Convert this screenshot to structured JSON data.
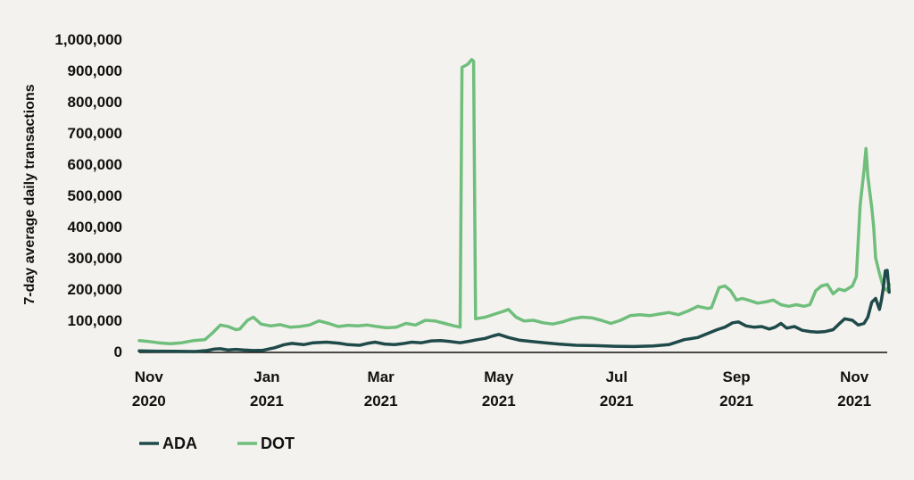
{
  "chart_data": {
    "type": "line",
    "xlabel": "",
    "ylabel": "7-day average daily transactions",
    "ylim": [
      0,
      1000000
    ],
    "xlim": [
      "2020-10-27",
      "2021-11-18"
    ],
    "grid": false,
    "legend_position": "bottom-left",
    "y_ticks": [
      "0",
      "100,000",
      "200,000",
      "300,000",
      "400,000",
      "500,000",
      "600,000",
      "700,000",
      "800,000",
      "900,000",
      "1,000,000"
    ],
    "y_tick_values": [
      0,
      100000,
      200000,
      300000,
      400000,
      500000,
      600000,
      700000,
      800000,
      900000,
      1000000
    ],
    "x_ticks": [
      {
        "date": "2020-11-01",
        "month": "Nov",
        "year": "2020"
      },
      {
        "date": "2021-01-01",
        "month": "Jan",
        "year": "2021"
      },
      {
        "date": "2021-03-01",
        "month": "Mar",
        "year": "2021"
      },
      {
        "date": "2021-05-01",
        "month": "May",
        "year": "2021"
      },
      {
        "date": "2021-07-01",
        "month": "Jul",
        "year": "2021"
      },
      {
        "date": "2021-09-01",
        "month": "Sep",
        "year": "2021"
      },
      {
        "date": "2021-11-01",
        "month": "Nov",
        "year": "2021"
      }
    ],
    "series": [
      {
        "name": "ADA",
        "color": "#1f4a4a",
        "points": [
          [
            "2020-10-27",
            2000
          ],
          [
            "2020-11-05",
            1000
          ],
          [
            "2020-11-15",
            500
          ],
          [
            "2020-11-25",
            0
          ],
          [
            "2020-12-01",
            3000
          ],
          [
            "2020-12-05",
            8000
          ],
          [
            "2020-12-08",
            9000
          ],
          [
            "2020-12-12",
            5000
          ],
          [
            "2020-12-16",
            7000
          ],
          [
            "2020-12-20",
            5000
          ],
          [
            "2020-12-25",
            3000
          ],
          [
            "2020-12-30",
            4000
          ],
          [
            "2021-01-05",
            12000
          ],
          [
            "2021-01-10",
            22000
          ],
          [
            "2021-01-14",
            26000
          ],
          [
            "2021-01-20",
            22000
          ],
          [
            "2021-01-25",
            28000
          ],
          [
            "2021-02-01",
            30000
          ],
          [
            "2021-02-07",
            27000
          ],
          [
            "2021-02-12",
            22000
          ],
          [
            "2021-02-18",
            20000
          ],
          [
            "2021-02-22",
            26000
          ],
          [
            "2021-02-26",
            30000
          ],
          [
            "2021-03-03",
            24000
          ],
          [
            "2021-03-08",
            22000
          ],
          [
            "2021-03-12",
            25000
          ],
          [
            "2021-03-17",
            30000
          ],
          [
            "2021-03-22",
            28000
          ],
          [
            "2021-03-27",
            34000
          ],
          [
            "2021-04-01",
            35000
          ],
          [
            "2021-04-06",
            32000
          ],
          [
            "2021-04-11",
            28000
          ],
          [
            "2021-04-16",
            33000
          ],
          [
            "2021-04-20",
            38000
          ],
          [
            "2021-04-24",
            42000
          ],
          [
            "2021-04-28",
            50000
          ],
          [
            "2021-05-01",
            55000
          ],
          [
            "2021-05-06",
            45000
          ],
          [
            "2021-05-12",
            36000
          ],
          [
            "2021-05-18",
            32000
          ],
          [
            "2021-05-25",
            28000
          ],
          [
            "2021-06-01",
            24000
          ],
          [
            "2021-06-10",
            20000
          ],
          [
            "2021-06-20",
            19000
          ],
          [
            "2021-06-30",
            17000
          ],
          [
            "2021-07-10",
            16000
          ],
          [
            "2021-07-20",
            18000
          ],
          [
            "2021-07-28",
            22000
          ],
          [
            "2021-08-05",
            38000
          ],
          [
            "2021-08-12",
            45000
          ],
          [
            "2021-08-18",
            60000
          ],
          [
            "2021-08-22",
            70000
          ],
          [
            "2021-08-26",
            78000
          ],
          [
            "2021-08-30",
            92000
          ],
          [
            "2021-09-02",
            95000
          ],
          [
            "2021-09-06",
            82000
          ],
          [
            "2021-09-10",
            78000
          ],
          [
            "2021-09-14",
            80000
          ],
          [
            "2021-09-18",
            72000
          ],
          [
            "2021-09-21",
            78000
          ],
          [
            "2021-09-24",
            90000
          ],
          [
            "2021-09-27",
            75000
          ],
          [
            "2021-10-01",
            80000
          ],
          [
            "2021-10-05",
            68000
          ],
          [
            "2021-10-09",
            64000
          ],
          [
            "2021-10-13",
            62000
          ],
          [
            "2021-10-17",
            64000
          ],
          [
            "2021-10-21",
            70000
          ],
          [
            "2021-10-24",
            88000
          ],
          [
            "2021-10-27",
            105000
          ],
          [
            "2021-10-31",
            100000
          ],
          [
            "2021-11-03",
            85000
          ],
          [
            "2021-11-06",
            90000
          ],
          [
            "2021-11-08",
            110000
          ],
          [
            "2021-11-10",
            158000
          ],
          [
            "2021-11-12",
            170000
          ],
          [
            "2021-11-14",
            135000
          ],
          [
            "2021-11-15",
            165000
          ],
          [
            "2021-11-16",
            205000
          ],
          [
            "2021-11-17",
            258000
          ],
          [
            "2021-11-18",
            260000
          ],
          [
            "2021-11-19",
            190000
          ]
        ]
      },
      {
        "name": "DOT",
        "color": "#6fbe7c",
        "points": [
          [
            "2020-10-27",
            35000
          ],
          [
            "2020-11-01",
            32000
          ],
          [
            "2020-11-06",
            28000
          ],
          [
            "2020-11-12",
            25000
          ],
          [
            "2020-11-18",
            28000
          ],
          [
            "2020-11-24",
            35000
          ],
          [
            "2020-11-30",
            38000
          ],
          [
            "2020-12-04",
            60000
          ],
          [
            "2020-12-08",
            85000
          ],
          [
            "2020-12-12",
            80000
          ],
          [
            "2020-12-16",
            70000
          ],
          [
            "2020-12-18",
            72000
          ],
          [
            "2020-12-22",
            100000
          ],
          [
            "2020-12-25",
            110000
          ],
          [
            "2020-12-29",
            88000
          ],
          [
            "2021-01-03",
            82000
          ],
          [
            "2021-01-08",
            86000
          ],
          [
            "2021-01-13",
            78000
          ],
          [
            "2021-01-18",
            80000
          ],
          [
            "2021-01-23",
            85000
          ],
          [
            "2021-01-28",
            98000
          ],
          [
            "2021-02-02",
            90000
          ],
          [
            "2021-02-07",
            80000
          ],
          [
            "2021-02-12",
            84000
          ],
          [
            "2021-02-17",
            82000
          ],
          [
            "2021-02-22",
            85000
          ],
          [
            "2021-02-27",
            80000
          ],
          [
            "2021-03-04",
            76000
          ],
          [
            "2021-03-09",
            78000
          ],
          [
            "2021-03-14",
            90000
          ],
          [
            "2021-03-19",
            85000
          ],
          [
            "2021-03-24",
            100000
          ],
          [
            "2021-03-29",
            98000
          ],
          [
            "2021-04-03",
            90000
          ],
          [
            "2021-04-08",
            82000
          ],
          [
            "2021-04-11",
            78000
          ],
          [
            "2021-04-12",
            910000
          ],
          [
            "2021-04-15",
            920000
          ],
          [
            "2021-04-17",
            935000
          ],
          [
            "2021-04-18",
            930000
          ],
          [
            "2021-04-19",
            105000
          ],
          [
            "2021-04-24",
            110000
          ],
          [
            "2021-04-29",
            120000
          ],
          [
            "2021-05-04",
            130000
          ],
          [
            "2021-05-06",
            135000
          ],
          [
            "2021-05-10",
            110000
          ],
          [
            "2021-05-14",
            98000
          ],
          [
            "2021-05-19",
            100000
          ],
          [
            "2021-05-24",
            92000
          ],
          [
            "2021-05-29",
            88000
          ],
          [
            "2021-06-03",
            95000
          ],
          [
            "2021-06-08",
            105000
          ],
          [
            "2021-06-13",
            110000
          ],
          [
            "2021-06-18",
            108000
          ],
          [
            "2021-06-23",
            100000
          ],
          [
            "2021-06-28",
            90000
          ],
          [
            "2021-07-03",
            100000
          ],
          [
            "2021-07-08",
            115000
          ],
          [
            "2021-07-13",
            118000
          ],
          [
            "2021-07-18",
            115000
          ],
          [
            "2021-07-23",
            120000
          ],
          [
            "2021-07-28",
            125000
          ],
          [
            "2021-08-02",
            118000
          ],
          [
            "2021-08-07",
            130000
          ],
          [
            "2021-08-12",
            145000
          ],
          [
            "2021-08-17",
            138000
          ],
          [
            "2021-08-19",
            140000
          ],
          [
            "2021-08-23",
            205000
          ],
          [
            "2021-08-26",
            210000
          ],
          [
            "2021-08-29",
            195000
          ],
          [
            "2021-09-01",
            165000
          ],
          [
            "2021-09-04",
            170000
          ],
          [
            "2021-09-07",
            165000
          ],
          [
            "2021-09-12",
            155000
          ],
          [
            "2021-09-17",
            160000
          ],
          [
            "2021-09-20",
            165000
          ],
          [
            "2021-09-24",
            150000
          ],
          [
            "2021-09-28",
            145000
          ],
          [
            "2021-10-02",
            150000
          ],
          [
            "2021-10-06",
            145000
          ],
          [
            "2021-10-09",
            150000
          ],
          [
            "2021-10-12",
            195000
          ],
          [
            "2021-10-15",
            210000
          ],
          [
            "2021-10-18",
            215000
          ],
          [
            "2021-10-21",
            185000
          ],
          [
            "2021-10-24",
            200000
          ],
          [
            "2021-10-27",
            195000
          ],
          [
            "2021-10-31",
            210000
          ],
          [
            "2021-11-02",
            240000
          ],
          [
            "2021-11-04",
            470000
          ],
          [
            "2021-11-06",
            580000
          ],
          [
            "2021-11-07",
            650000
          ],
          [
            "2021-11-08",
            560000
          ],
          [
            "2021-11-10",
            460000
          ],
          [
            "2021-11-11",
            400000
          ],
          [
            "2021-11-12",
            300000
          ],
          [
            "2021-11-14",
            250000
          ],
          [
            "2021-11-16",
            205000
          ],
          [
            "2021-11-17",
            200000
          ],
          [
            "2021-11-18",
            195000
          ],
          [
            "2021-11-19",
            215000
          ]
        ]
      }
    ]
  }
}
